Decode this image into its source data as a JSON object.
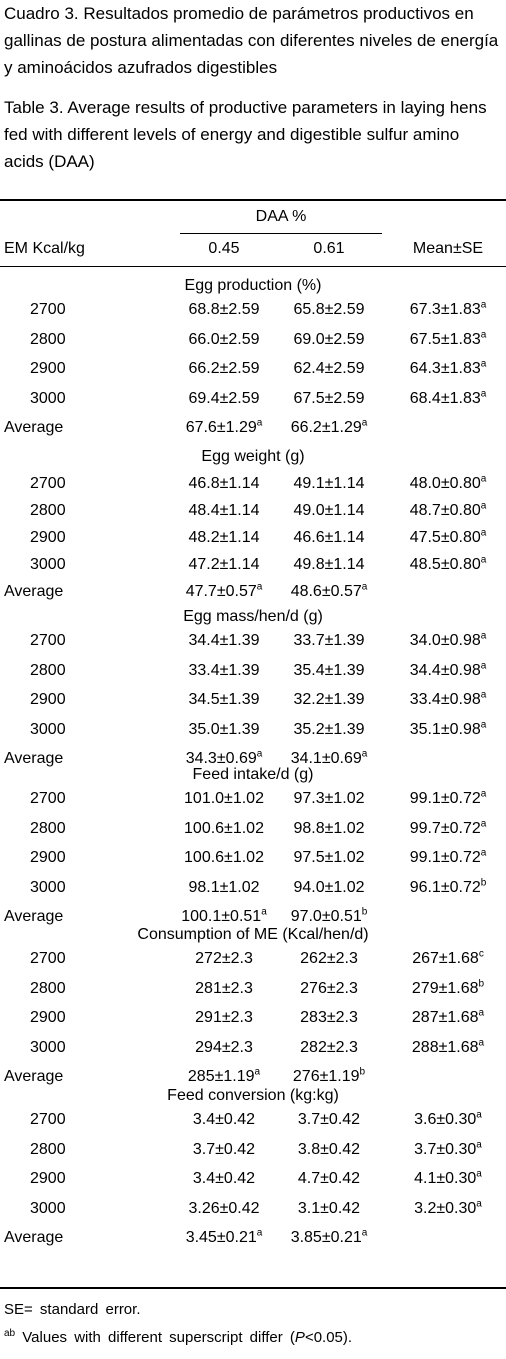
{
  "captions": {
    "es": "Cuadro 3. Resultados promedio de parámetros productivos en gallinas de postura alimentadas con diferentes niveles de energía y aminoácidos azufrados digestibles",
    "en": "Table 3. Average results of productive parameters in laying hens fed with different levels of energy and digestible sulfur amino acids (DAA)"
  },
  "table": {
    "group_header": "DAA %",
    "row_header": "EM Kcal/kg",
    "col1": "0.45",
    "col2": "0.61",
    "col3": "Mean±SE",
    "sections": [
      {
        "title": "Egg production (%)",
        "rows": [
          {
            "label": "2700",
            "c1": "68.8±2.59",
            "c2": "65.8±2.59",
            "c3": "67.3±1.83",
            "c3sup": "a"
          },
          {
            "label": "2800",
            "c1": "66.0±2.59",
            "c2": "69.0±2.59",
            "c3": "67.5±1.83",
            "c3sup": "a"
          },
          {
            "label": "2900",
            "c1": "66.2±2.59",
            "c2": "62.4±2.59",
            "c3": "64.3±1.83",
            "c3sup": "a"
          },
          {
            "label": "3000",
            "c1": "69.4±2.59",
            "c2": "67.5±2.59",
            "c3": "68.4±1.83",
            "c3sup": "a"
          }
        ],
        "average": {
          "label": "Average",
          "c1": "67.6±1.29",
          "c1sup": "a",
          "c2": "66.2±1.29",
          "c2sup": "a"
        }
      },
      {
        "title": "Egg weight (g)",
        "rows": [
          {
            "label": "2700",
            "c1": "46.8±1.14",
            "c2": "49.1±1.14",
            "c3": "48.0±0.80",
            "c3sup": "a"
          },
          {
            "label": "2800",
            "c1": "48.4±1.14",
            "c2": "49.0±1.14",
            "c3": "48.7±0.80",
            "c3sup": "a"
          },
          {
            "label": "2900",
            "c1": "48.2±1.14",
            "c2": "46.6±1.14",
            "c3": "47.5±0.80",
            "c3sup": "a"
          },
          {
            "label": "3000",
            "c1": "47.2±1.14",
            "c2": "49.8±1.14",
            "c3": "48.5±0.80",
            "c3sup": "a"
          }
        ],
        "average": {
          "label": "Average",
          "c1": "47.7±0.57",
          "c1sup": "a",
          "c2": "48.6±0.57",
          "c2sup": "a"
        }
      },
      {
        "title": "Egg mass/hen/d (g)",
        "rows": [
          {
            "label": "2700",
            "c1": "34.4±1.39",
            "c2": "33.7±1.39",
            "c3": "34.0±0.98",
            "c3sup": "a"
          },
          {
            "label": "2800",
            "c1": "33.4±1.39",
            "c2": "35.4±1.39",
            "c3": "34.4±0.98",
            "c3sup": "a"
          },
          {
            "label": "2900",
            "c1": "34.5±1.39",
            "c2": "32.2±1.39",
            "c3": "33.4±0.98",
            "c3sup": "a"
          },
          {
            "label": "3000",
            "c1": "35.0±1.39",
            "c2": "35.2±1.39",
            "c3": "35.1±0.98",
            "c3sup": "a"
          }
        ],
        "average": {
          "label": "Average",
          "c1": "34.3±0.69",
          "c1sup": "a",
          "c2": "34.1±0.69",
          "c2sup": "a"
        }
      },
      {
        "title": "Feed intake/d (g)",
        "rows": [
          {
            "label": "2700",
            "c1": "101.0±1.02",
            "c2": "97.3±1.02",
            "c3": "99.1±0.72",
            "c3sup": "a"
          },
          {
            "label": "2800",
            "c1": "100.6±1.02",
            "c2": "98.8±1.02",
            "c3": "99.7±0.72",
            "c3sup": "a"
          },
          {
            "label": "2900",
            "c1": "100.6±1.02",
            "c2": "97.5±1.02",
            "c3": "99.1±0.72",
            "c3sup": "a"
          },
          {
            "label": "3000",
            "c1": "98.1±1.02",
            "c2": "94.0±1.02",
            "c3": "96.1±0.72",
            "c3sup": "b"
          }
        ],
        "average": {
          "label": "Average",
          "c1": "100.1±0.51",
          "c1sup": "a",
          "c2": "97.0±0.51",
          "c2sup": "b"
        }
      },
      {
        "title": "Consumption of ME (Kcal/hen/d)",
        "rows": [
          {
            "label": "2700",
            "c1": "272±2.3",
            "c2": "262±2.3",
            "c3": "267±1.68",
            "c3sup": "c"
          },
          {
            "label": "2800",
            "c1": "281±2.3",
            "c2": "276±2.3",
            "c3": "279±1.68",
            "c3sup": "b"
          },
          {
            "label": "2900",
            "c1": "291±2.3",
            "c2": "283±2.3",
            "c3": "287±1.68",
            "c3sup": "a"
          },
          {
            "label": "3000",
            "c1": "294±2.3",
            "c2": "282±2.3",
            "c3": "288±1.68",
            "c3sup": "a"
          }
        ],
        "average": {
          "label": "Average",
          "c1": "285±1.19",
          "c1sup": "a",
          "c2": "276±1.19",
          "c2sup": "b"
        }
      },
      {
        "title": "Feed conversion (kg:kg)",
        "rows": [
          {
            "label": "2700",
            "c1": "3.4±0.42",
            "c2": "3.7±0.42",
            "c3": "3.6±0.30",
            "c3sup": "a"
          },
          {
            "label": "2800",
            "c1": "3.7±0.42",
            "c2": "3.8±0.42",
            "c3": "3.7±0.30",
            "c3sup": "a"
          },
          {
            "label": "2900",
            "c1": "3.4±0.42",
            "c2": "4.7±0.42",
            "c3": "4.1±0.30",
            "c3sup": "a"
          },
          {
            "label": "3000",
            "c1": "3.26±0.42",
            "c2": "3.1±0.42",
            "c3": "3.2±0.30",
            "c3sup": "a"
          }
        ],
        "average": {
          "label": "Average",
          "c1": "3.45±0.21",
          "c1sup": "a",
          "c2": "3.85±0.21",
          "c2sup": "a"
        }
      }
    ]
  },
  "footnotes": {
    "se": "SE= standard error.",
    "ab_marker": "ab",
    "ab_text_pre": " Values with different superscript differ (",
    "ab_p": "P",
    "ab_text_post": "<0.05)."
  }
}
